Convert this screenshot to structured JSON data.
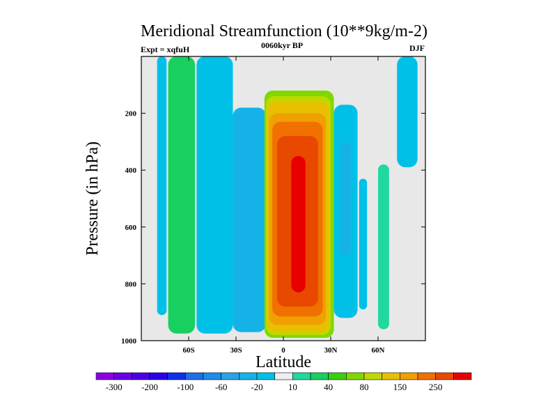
{
  "chart_data": {
    "type": "heatmap",
    "subtype": "filled-contour",
    "title": "Meridional Streamfunction (10**9kg/m-2)",
    "left_label": "Expt = xqfuH",
    "center_label": "0060kyr BP",
    "right_label": "DJF",
    "xlabel": "Latitude",
    "ylabel": "Pressure (in hPa)",
    "xlim": [
      -90,
      90
    ],
    "ylim": [
      1000,
      0
    ],
    "x_ticks": [
      -60,
      -30,
      0,
      30,
      60
    ],
    "x_tick_labels": [
      "60S",
      "30S",
      "0",
      "30N",
      "60N"
    ],
    "y_ticks": [
      200,
      400,
      600,
      800,
      1000
    ],
    "y_tick_labels": [
      "200",
      "400",
      "600",
      "800",
      "1000"
    ],
    "colorbar": {
      "levels": [
        -300,
        -250,
        -200,
        -150,
        -100,
        -80,
        -60,
        -40,
        -20,
        -10,
        10,
        20,
        40,
        60,
        80,
        100,
        150,
        200,
        250,
        300
      ],
      "label_values": [
        -300,
        -200,
        -100,
        -60,
        -20,
        10,
        40,
        80,
        150,
        250
      ],
      "labels": [
        "-300",
        "-200",
        "-100",
        "-60",
        "-20",
        "10",
        "40",
        "80",
        "150",
        "250"
      ],
      "colors": [
        "#8c00e8",
        "#6a00e8",
        "#4b00e8",
        "#2c00e8",
        "#1030e8",
        "#1f6ee8",
        "#1a8ee8",
        "#2aa4e8",
        "#15b2e8",
        "#00c0e8",
        "#eeeeee",
        "#20d8a0",
        "#18d060",
        "#38d010",
        "#80d800",
        "#c0d800",
        "#e8c000",
        "#f0a000",
        "#f07000",
        "#e84800",
        "#e80000"
      ]
    },
    "cells": [
      {
        "lat_min": -80,
        "lat_max": -74,
        "p_top": 0,
        "p_bottom": 910,
        "value": -15
      },
      {
        "lat_min": -73,
        "lat_max": -56,
        "p_top": 0,
        "p_bottom": 975,
        "value": 30
      },
      {
        "lat_min": -55,
        "lat_max": -32,
        "p_top": 0,
        "p_bottom": 975,
        "value": -15
      },
      {
        "lat_min": -32,
        "lat_max": -11,
        "p_top": 180,
        "p_bottom": 970,
        "value": -30
      },
      {
        "lat_min": -12,
        "lat_max": 32,
        "p_top": 120,
        "p_bottom": 990,
        "value": 60
      },
      {
        "lat_min": -11,
        "lat_max": 30,
        "p_top": 140,
        "p_bottom": 980,
        "value": 90
      },
      {
        "lat_min": -10,
        "lat_max": 29,
        "p_top": 160,
        "p_bottom": 970,
        "value": 120
      },
      {
        "lat_min": -9,
        "lat_max": 27,
        "p_top": 200,
        "p_bottom": 945,
        "value": 170
      },
      {
        "lat_min": -7,
        "lat_max": 25,
        "p_top": 230,
        "p_bottom": 915,
        "value": 220
      },
      {
        "lat_min": -4,
        "lat_max": 22,
        "p_top": 280,
        "p_bottom": 880,
        "value": 265
      },
      {
        "lat_min": 5,
        "lat_max": 14,
        "p_top": 350,
        "p_bottom": 830,
        "value": 310
      },
      {
        "lat_min": 32,
        "lat_max": 47,
        "p_top": 170,
        "p_bottom": 920,
        "value": -20
      },
      {
        "lat_min": 36,
        "lat_max": 43,
        "p_top": 300,
        "p_bottom": 700,
        "value": -40
      },
      {
        "lat_min": 48,
        "lat_max": 53,
        "p_top": 430,
        "p_bottom": 890,
        "value": -15
      },
      {
        "lat_min": 60,
        "lat_max": 67,
        "p_top": 380,
        "p_bottom": 960,
        "value": 15
      },
      {
        "lat_min": 72,
        "lat_max": 85,
        "p_top": 0,
        "p_bottom": 390,
        "value": -15
      }
    ]
  }
}
